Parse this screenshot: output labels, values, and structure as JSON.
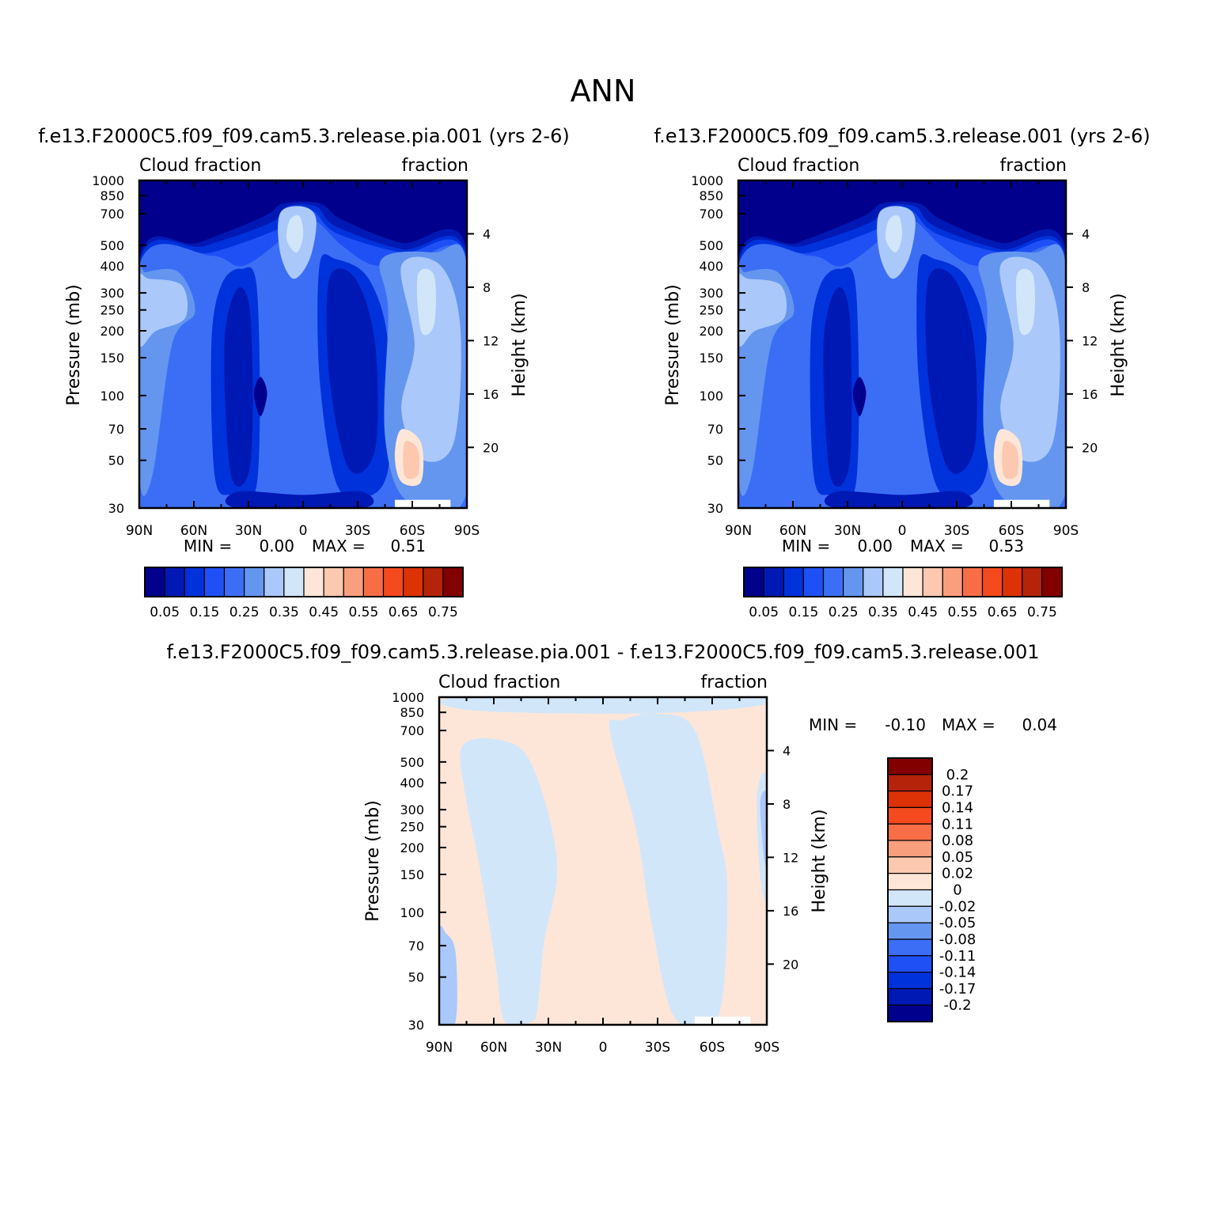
{
  "main_title": "ANN",
  "chart_data": [
    {
      "type": "contour",
      "title": "f.e13.F2000C5.f09_f09.cam5.3.release.pia.001 (yrs 2-6)",
      "left_label": "Cloud fraction",
      "right_label": "fraction",
      "xlabel": "",
      "ylabel": "Pressure (mb)",
      "y2label": "Height (km)",
      "x_ticks": [
        "90N",
        "60N",
        "30N",
        "0",
        "30S",
        "60S",
        "90S"
      ],
      "y_ticks": [
        "30",
        "50",
        "70",
        "100",
        "150",
        "200",
        "250",
        "300",
        "400",
        "500",
        "700",
        "850",
        "1000"
      ],
      "y2_ticks": [
        "20",
        "16",
        "12",
        "8",
        "4"
      ],
      "ylim": [
        1000,
        30
      ],
      "y_scale": "log",
      "min_label": "MIN =",
      "min": "0.00",
      "max_label": "MAX =",
      "max": "0.51",
      "colorbar": {
        "orientation": "horizontal",
        "levels": [
          "0.05",
          "0.15",
          "0.25",
          "0.35",
          "0.45",
          "0.55",
          "0.65",
          "0.75"
        ],
        "colors": [
          "#00008c",
          "#0019b4",
          "#0032dc",
          "#1e50f5",
          "#3c6ef5",
          "#6496f0",
          "#aac8fa",
          "#d2e6fa",
          "#fde6d8",
          "#fcc8af",
          "#fa9f7d",
          "#f76e46",
          "#f54a1e",
          "#dc3205",
          "#b4230a",
          "#820000"
        ]
      }
    },
    {
      "type": "contour",
      "title": "f.e13.F2000C5.f09_f09.cam5.3.release.001 (yrs 2-6)",
      "left_label": "Cloud fraction",
      "right_label": "fraction",
      "xlabel": "",
      "ylabel": "Pressure (mb)",
      "y2label": "Height (km)",
      "x_ticks": [
        "90N",
        "60N",
        "30N",
        "0",
        "30S",
        "60S",
        "90S"
      ],
      "y_ticks": [
        "30",
        "50",
        "70",
        "100",
        "150",
        "200",
        "250",
        "300",
        "400",
        "500",
        "700",
        "850",
        "1000"
      ],
      "y2_ticks": [
        "20",
        "16",
        "12",
        "8",
        "4"
      ],
      "ylim": [
        1000,
        30
      ],
      "y_scale": "log",
      "min_label": "MIN =",
      "min": "0.00",
      "max_label": "MAX =",
      "max": "0.53",
      "colorbar": {
        "orientation": "horizontal",
        "levels": [
          "0.05",
          "0.15",
          "0.25",
          "0.35",
          "0.45",
          "0.55",
          "0.65",
          "0.75"
        ],
        "colors": [
          "#00008c",
          "#0019b4",
          "#0032dc",
          "#1e50f5",
          "#3c6ef5",
          "#6496f0",
          "#aac8fa",
          "#d2e6fa",
          "#fde6d8",
          "#fcc8af",
          "#fa9f7d",
          "#f76e46",
          "#f54a1e",
          "#dc3205",
          "#b4230a",
          "#820000"
        ]
      }
    },
    {
      "type": "contour",
      "title": "f.e13.F2000C5.f09_f09.cam5.3.release.pia.001 - f.e13.F2000C5.f09_f09.cam5.3.release.001",
      "left_label": "Cloud fraction",
      "right_label": "fraction",
      "xlabel": "",
      "ylabel": "Pressure (mb)",
      "y2label": "Height (km)",
      "x_ticks": [
        "90N",
        "60N",
        "30N",
        "0",
        "30S",
        "60S",
        "90S"
      ],
      "y_ticks": [
        "30",
        "50",
        "70",
        "100",
        "150",
        "200",
        "250",
        "300",
        "400",
        "500",
        "700",
        "850",
        "1000"
      ],
      "y2_ticks": [
        "20",
        "16",
        "12",
        "8",
        "4"
      ],
      "ylim": [
        1000,
        30
      ],
      "y_scale": "log",
      "min_label": "MIN =",
      "min": "-0.10",
      "max_label": "MAX =",
      "max": "0.04",
      "colorbar": {
        "orientation": "vertical",
        "levels": [
          "0.2",
          "0.17",
          "0.14",
          "0.11",
          "0.08",
          "0.05",
          "0.02",
          "0",
          "-0.02",
          "-0.05",
          "-0.08",
          "-0.11",
          "-0.14",
          "-0.17",
          "-0.2"
        ],
        "colors": [
          "#820000",
          "#b4230a",
          "#dc3205",
          "#f54a1e",
          "#f76e46",
          "#fa9f7d",
          "#fcc8af",
          "#fde6d8",
          "#d2e6fa",
          "#aac8fa",
          "#6496f0",
          "#3c6ef5",
          "#1e50f5",
          "#0032dc",
          "#0019b4",
          "#00008c"
        ]
      }
    }
  ]
}
